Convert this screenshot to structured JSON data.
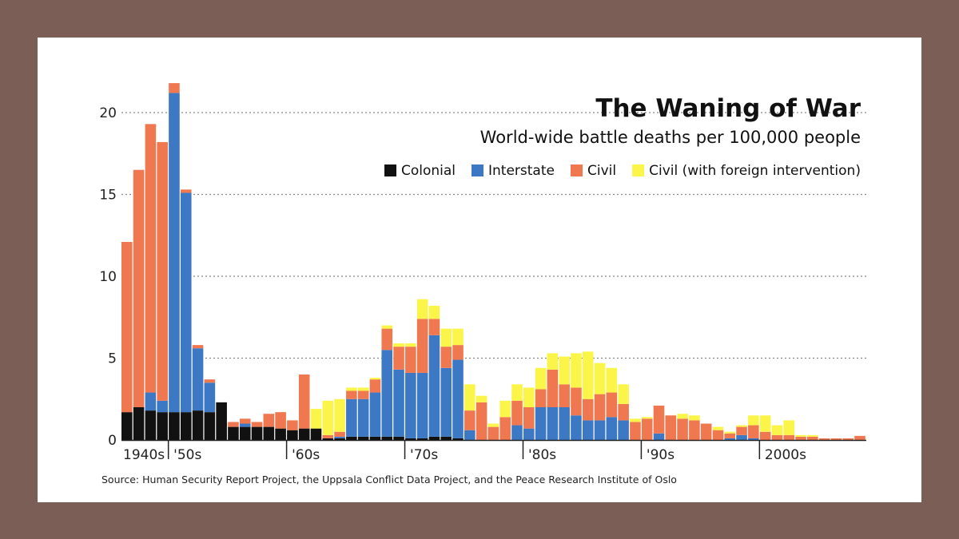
{
  "chart_data": {
    "type": "bar",
    "stacked": true,
    "title": "The Waning of War",
    "subtitle": "World-wide battle deaths per 100,000 people",
    "source": "Source: Human Security Report Project, the Uppsala Conflict Data Project, and the Peace Research Institute of Oslo",
    "ylim": [
      0,
      22
    ],
    "yticks": [
      0,
      5,
      10,
      15,
      20
    ],
    "grid": "dotted horizontal",
    "legend_position": "top-right",
    "x_range": [
      1946,
      2008
    ],
    "xtick_labels": [
      {
        "year": 1946,
        "label": "1940s"
      },
      {
        "year": 1950,
        "label": "'50s"
      },
      {
        "year": 1960,
        "label": "'60s"
      },
      {
        "year": 1970,
        "label": "'70s"
      },
      {
        "year": 1980,
        "label": "'80s"
      },
      {
        "year": 1990,
        "label": "'90s"
      },
      {
        "year": 2000,
        "label": "2000s"
      }
    ],
    "x": [
      1946,
      1947,
      1948,
      1949,
      1950,
      1951,
      1952,
      1953,
      1954,
      1955,
      1956,
      1957,
      1958,
      1959,
      1960,
      1961,
      1962,
      1963,
      1964,
      1965,
      1966,
      1967,
      1968,
      1969,
      1970,
      1971,
      1972,
      1973,
      1974,
      1975,
      1976,
      1977,
      1978,
      1979,
      1980,
      1981,
      1982,
      1983,
      1984,
      1985,
      1986,
      1987,
      1988,
      1989,
      1990,
      1991,
      1992,
      1993,
      1994,
      1995,
      1996,
      1997,
      1998,
      1999,
      2000,
      2001,
      2002,
      2003,
      2004,
      2005,
      2006,
      2007,
      2008
    ],
    "series": [
      {
        "name": "Colonial",
        "color": "#111111",
        "values": [
          1.7,
          2.0,
          1.8,
          1.7,
          1.7,
          1.7,
          1.8,
          1.7,
          2.3,
          0.8,
          0.8,
          0.8,
          0.8,
          0.7,
          0.6,
          0.7,
          0.7,
          0.1,
          0.1,
          0.2,
          0.2,
          0.2,
          0.2,
          0.2,
          0.1,
          0.1,
          0.2,
          0.2,
          0.1,
          0,
          0,
          0,
          0,
          0,
          0,
          0,
          0,
          0,
          0,
          0,
          0,
          0,
          0,
          0,
          0,
          0,
          0,
          0,
          0,
          0,
          0,
          0,
          0,
          0,
          0,
          0,
          0,
          0,
          0,
          0,
          0,
          0,
          0
        ]
      },
      {
        "name": "Interstate",
        "color": "#3c78c3",
        "values": [
          0,
          0,
          1.1,
          0.7,
          19.5,
          13.4,
          3.8,
          1.8,
          0,
          0,
          0.2,
          0,
          0,
          0,
          0,
          0,
          0,
          0,
          0.1,
          2.3,
          2.3,
          2.7,
          5.3,
          4.1,
          4.0,
          4.0,
          6.2,
          4.2,
          4.8,
          0.6,
          0,
          0,
          0,
          0.9,
          0.7,
          2.0,
          2.0,
          2.0,
          1.5,
          1.2,
          1.2,
          1.4,
          1.2,
          0,
          0,
          0.4,
          0,
          0,
          0,
          0,
          0,
          0.1,
          0.3,
          0.1,
          0,
          0,
          0,
          0,
          0,
          0,
          0,
          0,
          0
        ]
      },
      {
        "name": "Civil",
        "color": "#f07850",
        "values": [
          10.4,
          14.5,
          16.4,
          15.8,
          0.6,
          0.2,
          0.2,
          0.2,
          0,
          0.3,
          0.3,
          0.3,
          0.8,
          1.0,
          0.6,
          3.3,
          0,
          0.2,
          0.3,
          0.5,
          0.5,
          0.8,
          1.3,
          1.4,
          1.6,
          3.3,
          1.0,
          1.3,
          0.9,
          1.2,
          2.3,
          0.8,
          1.4,
          1.5,
          1.3,
          1.1,
          2.3,
          1.4,
          1.7,
          1.3,
          1.6,
          1.5,
          1.0,
          1.1,
          1.3,
          1.7,
          1.5,
          1.3,
          1.2,
          1.0,
          0.6,
          0.3,
          0.5,
          0.8,
          0.5,
          0.3,
          0.3,
          0.2,
          0.2,
          0.1,
          0.1,
          0.1,
          0.25
        ]
      },
      {
        "name": "Civil (with foreign intervention)",
        "color": "#fbf54a",
        "values": [
          0,
          0,
          0,
          0,
          0,
          0,
          0,
          0,
          0,
          0,
          0,
          0,
          0,
          0,
          0,
          0,
          1.2,
          2.1,
          2.0,
          0.2,
          0.2,
          0.1,
          0.2,
          0.2,
          0.2,
          1.2,
          0.8,
          1.1,
          1.0,
          1.6,
          0.4,
          0.2,
          1.0,
          1.0,
          1.2,
          1.3,
          1.0,
          1.7,
          2.1,
          2.9,
          1.9,
          1.5,
          1.2,
          0.2,
          0.1,
          0,
          0,
          0.3,
          0.3,
          0,
          0.2,
          0.1,
          0.1,
          0.6,
          1.0,
          0.6,
          0.9,
          0.1,
          0.1,
          0,
          0,
          0,
          0
        ]
      }
    ]
  }
}
